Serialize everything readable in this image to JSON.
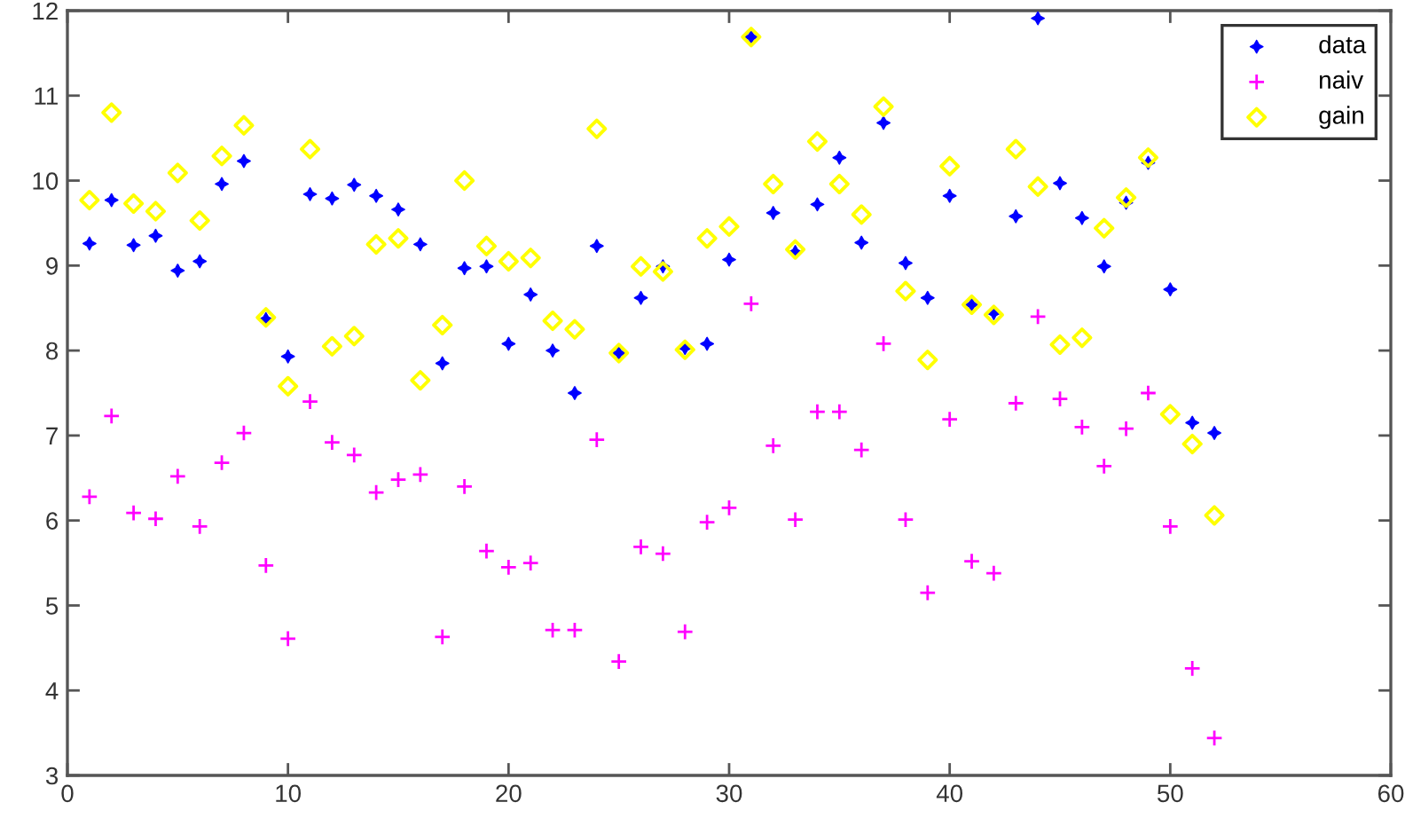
{
  "chart_data": {
    "type": "scatter",
    "x": [
      1,
      2,
      3,
      4,
      5,
      6,
      7,
      8,
      9,
      10,
      11,
      12,
      13,
      14,
      15,
      16,
      17,
      18,
      19,
      20,
      21,
      22,
      23,
      24,
      25,
      26,
      27,
      28,
      29,
      30,
      31,
      32,
      33,
      34,
      35,
      36,
      37,
      38,
      39,
      40,
      41,
      42,
      43,
      44,
      45,
      46,
      47,
      48,
      49,
      50,
      51,
      52
    ],
    "series": [
      {
        "name": "data",
        "color": "#0000ff",
        "marker": "star",
        "values": [
          9.26,
          9.77,
          9.24,
          9.35,
          8.94,
          9.05,
          9.96,
          10.23,
          8.37,
          7.93,
          9.84,
          9.79,
          9.95,
          9.82,
          9.66,
          9.25,
          7.85,
          8.97,
          8.99,
          8.08,
          8.66,
          8.0,
          7.5,
          9.23,
          7.97,
          8.62,
          8.99,
          8.03,
          8.08,
          9.07,
          11.69,
          9.62,
          9.16,
          9.72,
          10.27,
          9.27,
          10.68,
          9.03,
          8.62,
          9.82,
          8.54,
          8.44,
          9.58,
          11.91,
          9.97,
          9.56,
          8.99,
          9.74,
          10.21,
          8.72,
          7.15,
          7.03
        ]
      },
      {
        "name": "naiv",
        "color": "#ff00ff",
        "marker": "cross",
        "values": [
          6.28,
          7.23,
          6.09,
          6.02,
          6.52,
          5.93,
          6.68,
          7.03,
          5.47,
          4.61,
          7.4,
          6.92,
          6.77,
          6.33,
          6.48,
          6.54,
          4.63,
          6.4,
          5.64,
          5.45,
          5.5,
          4.71,
          4.71,
          6.95,
          4.34,
          5.69,
          5.61,
          4.69,
          5.98,
          6.15,
          8.55,
          6.88,
          6.01,
          7.28,
          7.28,
          6.83,
          8.08,
          6.01,
          5.15,
          7.19,
          5.52,
          5.38,
          7.38,
          8.4,
          7.43,
          7.1,
          6.64,
          7.08,
          7.5,
          5.93,
          4.26,
          3.44
        ]
      },
      {
        "name": "gain",
        "color": "#ffff00",
        "marker": "diamond",
        "values": [
          9.77,
          10.8,
          9.73,
          9.64,
          10.09,
          9.53,
          10.29,
          10.65,
          8.39,
          7.58,
          10.37,
          8.05,
          8.17,
          9.25,
          9.32,
          7.65,
          8.3,
          10.0,
          9.23,
          9.05,
          9.09,
          8.35,
          8.25,
          10.61,
          7.97,
          8.99,
          8.93,
          8.01,
          9.32,
          9.46,
          11.69,
          9.96,
          9.19,
          10.46,
          9.96,
          9.6,
          10.87,
          8.7,
          7.89,
          10.17,
          8.54,
          8.42,
          10.37,
          9.93,
          8.07,
          8.15,
          9.44,
          9.8,
          10.27,
          7.25,
          6.9,
          6.06
        ]
      }
    ],
    "xlim": [
      0,
      60
    ],
    "xticks": [
      0,
      10,
      20,
      30,
      40,
      50,
      60
    ],
    "ylim": [
      3,
      12
    ],
    "yticks": [
      3,
      4,
      5,
      6,
      7,
      8,
      9,
      10,
      11,
      12
    ],
    "legend": "top right"
  }
}
